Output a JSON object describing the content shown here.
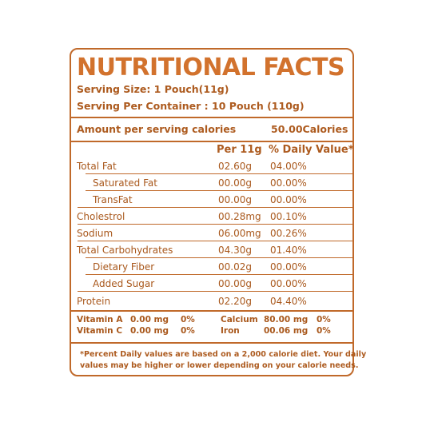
{
  "label": {
    "title": "NUTRITIONAL FACTS",
    "serving_size": "Serving Size: 1 Pouch(11g)",
    "serving_per_container": "Serving Per Container : 10 Pouch (110g)",
    "amount_label": "Amount per serving calories",
    "amount_value": "50.00Calories",
    "col_per": "Per 11g",
    "col_dv": "% Daily Value*",
    "rows": [
      {
        "name": "Total Fat",
        "amount": "02.60g",
        "dv": "04.00%",
        "indent": false
      },
      {
        "name": "Saturated Fat",
        "amount": "00.00g",
        "dv": "00.00%",
        "indent": true
      },
      {
        "name": "TransFat",
        "amount": "00.00g",
        "dv": "00.00%",
        "indent": true
      },
      {
        "name": "Cholestrol",
        "amount": "00.28mg",
        "dv": "00.10%",
        "indent": false
      },
      {
        "name": "Sodium",
        "amount": "06.00mg",
        "dv": "00.26%",
        "indent": false
      },
      {
        "name": "Total Carbohydrates",
        "amount": "04.30g",
        "dv": "01.40%",
        "indent": false
      },
      {
        "name": "Dietary Fiber",
        "amount": "00.02g",
        "dv": "00.00%",
        "indent": true
      },
      {
        "name": "Added Sugar",
        "amount": "00.00g",
        "dv": "00.00%",
        "indent": true
      },
      {
        "name": "Protein",
        "amount": "02.20g",
        "dv": "04.40%",
        "indent": false
      }
    ],
    "vitamins": [
      {
        "name": "Vitamin A",
        "amount": "0.00 mg",
        "dv": "0%"
      },
      {
        "name": "Vitamin C",
        "amount": "0.00 mg",
        "dv": "0%"
      },
      {
        "name": "Calcium",
        "amount": "80.00 mg",
        "dv": "0%"
      },
      {
        "name": "Iron",
        "amount": "00.06 mg",
        "dv": "0%"
      }
    ],
    "footnote_line1": "*Percent Daily values are based on a 2,000 calorie diet. Your daily",
    "footnote_line2": "values may be higher or lower depending on your calorie needs."
  },
  "colors": {
    "accent": "#c0692a",
    "title": "#d2722d",
    "text": "#a9581c"
  }
}
